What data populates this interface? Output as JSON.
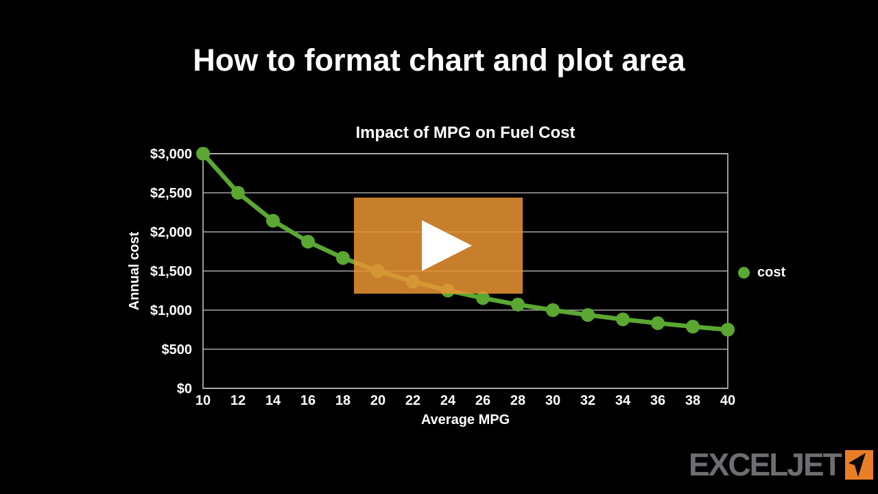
{
  "video": {
    "title": "How to format chart and plot area"
  },
  "colors": {
    "series_green": "#5AA832",
    "overlay_orange": "#E99433DB",
    "gridline_gray": "#A6A6A6",
    "plot_border_gray": "#BDBDBD",
    "logo_gray": "#6E6E71",
    "logo_orange": "#E87E26",
    "background": "#000000",
    "text": "#FFFFFF"
  },
  "chart_data": {
    "type": "line",
    "title": "Impact of MPG on Fuel Cost",
    "xlabel": "Average MPG",
    "ylabel": "Annual cost",
    "x": [
      10,
      12,
      14,
      16,
      18,
      20,
      22,
      24,
      26,
      28,
      30,
      32,
      34,
      36,
      38,
      40
    ],
    "series": [
      {
        "name": "cost",
        "values": [
          3000,
          2500,
          2143,
          1875,
          1667,
          1500,
          1364,
          1250,
          1154,
          1071,
          1000,
          938,
          882,
          833,
          789,
          750
        ],
        "color": "#5AA832",
        "marker": "circle"
      }
    ],
    "xlim": [
      10,
      40
    ],
    "ylim": [
      0,
      3000
    ],
    "yticks": {
      "values": [
        0,
        500,
        1000,
        1500,
        2000,
        2500,
        3000
      ],
      "labels": [
        "$0",
        "$500",
        "$1,000",
        "$1,500",
        "$2,000",
        "$2,500",
        "$3,000"
      ]
    },
    "grid": true,
    "legend_position": "right"
  },
  "logo": {
    "text": "EXCELJET",
    "icon": "paper-plane-icon"
  }
}
